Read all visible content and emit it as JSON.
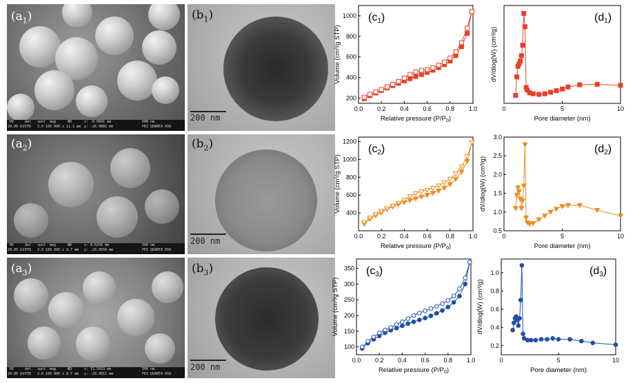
{
  "figure": {
    "labels": {
      "a1": {
        "main": "(a",
        "sub": "1",
        "close": ")"
      },
      "a2": {
        "main": "(a",
        "sub": "2",
        "close": ")"
      },
      "a3": {
        "main": "(a",
        "sub": "3",
        "close": ")"
      },
      "b1": {
        "main": "(b",
        "sub": "1",
        "close": ")"
      },
      "b2": {
        "main": "(b",
        "sub": "2",
        "close": ")"
      },
      "b3": {
        "main": "(b",
        "sub": "3",
        "close": ")"
      },
      "c1": {
        "main": "(c",
        "sub": "1",
        "close": ")"
      },
      "c2": {
        "main": "(c",
        "sub": "2",
        "close": ")"
      },
      "c3": {
        "main": "(c",
        "sub": "3",
        "close": ")"
      },
      "d1": {
        "main": "(d",
        "sub": "1",
        "close": ")"
      },
      "d2": {
        "main": "(d",
        "sub": "2",
        "close": ")"
      },
      "d3": {
        "main": "(d",
        "sub": "3",
        "close": ")"
      }
    },
    "sem_footer": {
      "row1": [
        "HV",
        "det",
        "spot",
        "mag",
        "WD",
        "500 nm"
      ],
      "row2_a1": [
        "20.00 kV",
        "ETD",
        "3.0",
        "160 000 x",
        "11.1 mm",
        "x: -0.0841 mm",
        "y: -26.9881 mm",
        "FEI QUANTA 650"
      ],
      "row2_a2": [
        "20.00 kV",
        "ETD",
        "3.0",
        "160 000 x",
        "8.7 mm",
        "x: 8.6256 mm",
        "y: -29.6656 mm",
        "FEI QUANTA 650"
      ],
      "row2_a3": [
        "20.00 kV",
        "ETD",
        "3.0",
        "160 000 x",
        "8.7 mm",
        "x: 13.5919 mm",
        "y: -28.0811 mm",
        "FEI QUANTA 650"
      ]
    },
    "tem_scale": "200 nm"
  },
  "chart_data": [
    {
      "id": "c1",
      "type": "line",
      "color": "#e8402a",
      "marker": "square",
      "xlabel": "Relative pressure (P/P",
      "xlabel_sub": "0",
      "xlabel_end": ")",
      "ylabel": "Volume (cm³/g STP)",
      "xlim": [
        0,
        1.0
      ],
      "ylim": [
        150,
        1100
      ],
      "xticks": [
        0.0,
        0.2,
        0.4,
        0.6,
        0.8,
        1.0
      ],
      "xtick_labels": [
        "0.0",
        "0.2",
        "0.4",
        "0.6",
        "0.8",
        "1.0"
      ],
      "yticks": [
        200,
        400,
        600,
        800,
        1000
      ],
      "ytick_labels": [
        "200",
        "400",
        "600",
        "800",
        "1000"
      ],
      "series": [
        {
          "role": "adsorption",
          "filled": true,
          "x": [
            0.05,
            0.1,
            0.15,
            0.2,
            0.25,
            0.3,
            0.35,
            0.4,
            0.45,
            0.5,
            0.55,
            0.6,
            0.65,
            0.7,
            0.75,
            0.8,
            0.85,
            0.9,
            0.95,
            0.99
          ],
          "y": [
            195,
            225,
            250,
            275,
            300,
            322,
            345,
            368,
            390,
            410,
            430,
            450,
            472,
            497,
            525,
            560,
            615,
            700,
            830,
            1040
          ]
        },
        {
          "role": "desorption",
          "filled": false,
          "x": [
            0.99,
            0.95,
            0.9,
            0.85,
            0.8,
            0.75,
            0.7,
            0.65,
            0.6,
            0.55,
            0.5,
            0.45,
            0.4,
            0.35,
            0.3,
            0.25,
            0.2,
            0.15,
            0.1,
            0.05
          ],
          "y": [
            1040,
            880,
            740,
            650,
            590,
            550,
            520,
            495,
            478,
            470,
            455,
            430,
            395,
            362,
            335,
            310,
            285,
            262,
            238,
            210
          ]
        }
      ]
    },
    {
      "id": "d1",
      "type": "line",
      "color": "#e8402a",
      "marker": "square",
      "xlabel": "Pore diameter (nm)",
      "ylabel": "dV/dlog(W) (cm³/g)",
      "xlim": [
        0,
        10
      ],
      "ylim": [
        0.45,
        2.3
      ],
      "xticks": [
        0,
        5,
        10
      ],
      "xtick_labels": [
        "0",
        "5",
        "10"
      ],
      "yticks": [],
      "ytick_labels": [],
      "series": [
        {
          "role": "distribution",
          "filled": true,
          "x": [
            1.0,
            1.1,
            1.2,
            1.3,
            1.4,
            1.5,
            1.6,
            1.7,
            1.8,
            1.9,
            2.0,
            2.2,
            2.5,
            3.0,
            3.5,
            4.0,
            4.5,
            5.0,
            5.5,
            6.5,
            8.0,
            10.0
          ],
          "y": [
            0.6,
            0.95,
            1.15,
            1.2,
            1.25,
            1.35,
            1.55,
            2.15,
            1.9,
            0.75,
            0.7,
            0.65,
            0.63,
            0.62,
            0.63,
            0.66,
            0.69,
            0.72,
            0.76,
            0.8,
            0.81,
            0.79
          ]
        }
      ]
    },
    {
      "id": "c2",
      "type": "line",
      "color": "#f08a20",
      "marker": "triangle-down",
      "xlabel": "Relative pressure (P/P",
      "xlabel_sub": "0",
      "xlabel_end": ")",
      "ylabel": "Volume (cm³/g STP)",
      "xlim": [
        0,
        1.0
      ],
      "ylim": [
        200,
        1250
      ],
      "xticks": [
        0.0,
        0.2,
        0.4,
        0.6,
        0.8,
        1.0
      ],
      "xtick_labels": [
        "0.0",
        "0.2",
        "0.4",
        "0.6",
        "0.8",
        "1.0"
      ],
      "yticks": [
        400,
        600,
        800,
        1000,
        1200
      ],
      "ytick_labels": [
        "400",
        "600",
        "800",
        "1000",
        "1200"
      ],
      "series": [
        {
          "role": "adsorption",
          "filled": true,
          "x": [
            0.05,
            0.1,
            0.15,
            0.2,
            0.25,
            0.3,
            0.35,
            0.4,
            0.45,
            0.5,
            0.55,
            0.6,
            0.65,
            0.7,
            0.75,
            0.8,
            0.85,
            0.9,
            0.95,
            0.99
          ],
          "y": [
            275,
            330,
            370,
            405,
            440,
            470,
            495,
            520,
            540,
            560,
            580,
            600,
            622,
            648,
            680,
            720,
            780,
            860,
            980,
            1190
          ]
        },
        {
          "role": "desorption",
          "filled": false,
          "x": [
            0.99,
            0.95,
            0.9,
            0.85,
            0.8,
            0.75,
            0.7,
            0.65,
            0.6,
            0.55,
            0.5,
            0.45,
            0.4,
            0.35,
            0.3,
            0.25,
            0.2,
            0.15,
            0.1,
            0.05
          ],
          "y": [
            1190,
            1030,
            920,
            840,
            780,
            740,
            705,
            678,
            655,
            640,
            620,
            585,
            545,
            510,
            478,
            450,
            420,
            385,
            345,
            295
          ]
        }
      ]
    },
    {
      "id": "d2",
      "type": "line",
      "color": "#f08a20",
      "marker": "triangle-down",
      "xlabel": "Pore diameter (nm)",
      "ylabel": "dV/dlog(W) (cm³/g)",
      "xlim": [
        0,
        10
      ],
      "ylim": [
        0.5,
        3.0
      ],
      "xticks": [
        0,
        5,
        10
      ],
      "xtick_labels": [
        "0",
        "5",
        "10"
      ],
      "yticks": [
        0.5,
        1.0,
        1.5,
        2.0,
        2.5,
        3.0
      ],
      "ytick_labels": [
        "0.5",
        "1.0",
        "1.5",
        "2.0",
        "2.5",
        "3.0"
      ],
      "series": [
        {
          "role": "distribution",
          "filled": true,
          "x": [
            1.0,
            1.1,
            1.2,
            1.3,
            1.4,
            1.5,
            1.6,
            1.7,
            1.8,
            1.9,
            2.0,
            2.2,
            2.5,
            3.0,
            3.5,
            4.0,
            4.5,
            5.0,
            5.5,
            6.5,
            8.0,
            10.0
          ],
          "y": [
            1.1,
            1.45,
            1.65,
            1.55,
            1.35,
            1.1,
            1.3,
            1.7,
            2.8,
            0.85,
            0.72,
            0.68,
            0.7,
            0.8,
            0.9,
            1.0,
            1.08,
            1.15,
            1.18,
            1.18,
            1.05,
            0.9
          ]
        }
      ]
    },
    {
      "id": "c3",
      "type": "line",
      "color": "#1f4fa8",
      "marker": "circle",
      "xlabel": "Relative pressure (P/P",
      "xlabel_sub": "0",
      "xlabel_end": ")",
      "ylabel": "Volume (cm³/g STP)",
      "xlim": [
        0,
        1.0
      ],
      "ylim": [
        75,
        380
      ],
      "xticks": [
        0.0,
        0.2,
        0.4,
        0.6,
        0.8,
        1.0
      ],
      "xtick_labels": [
        "0.0",
        "0.2",
        "0.4",
        "0.6",
        "0.8",
        "1.0"
      ],
      "yticks": [
        100,
        150,
        200,
        250,
        300,
        350
      ],
      "ytick_labels": [
        "100",
        "150",
        "200",
        "250",
        "300",
        "350"
      ],
      "series": [
        {
          "role": "adsorption",
          "filled": true,
          "x": [
            0.05,
            0.1,
            0.15,
            0.2,
            0.25,
            0.3,
            0.35,
            0.4,
            0.45,
            0.5,
            0.55,
            0.6,
            0.65,
            0.7,
            0.75,
            0.8,
            0.85,
            0.9,
            0.95,
            0.99
          ],
          "y": [
            95,
            112,
            124,
            135,
            145,
            153,
            160,
            167,
            174,
            180,
            186,
            192,
            199,
            207,
            216,
            227,
            242,
            262,
            300,
            370
          ]
        },
        {
          "role": "desorption",
          "filled": false,
          "x": [
            0.99,
            0.95,
            0.9,
            0.85,
            0.8,
            0.75,
            0.7,
            0.65,
            0.6,
            0.55,
            0.5,
            0.45,
            0.4,
            0.35,
            0.3,
            0.25,
            0.2,
            0.15,
            0.1,
            0.05
          ],
          "y": [
            370,
            320,
            285,
            262,
            248,
            238,
            229,
            222,
            215,
            208,
            200,
            190,
            180,
            171,
            162,
            154,
            145,
            132,
            118,
            100
          ]
        }
      ]
    },
    {
      "id": "d3",
      "type": "line",
      "color": "#1f4fa8",
      "marker": "circle",
      "xlabel": "Pore diameter (nm)",
      "ylabel": "dV/dlog(W) (cm³/g)",
      "xlim": [
        0,
        10
      ],
      "ylim": [
        0.1,
        1.15
      ],
      "xticks": [
        0,
        5,
        10
      ],
      "xtick_labels": [
        "0",
        "5",
        "10"
      ],
      "yticks": [
        0.2,
        0.4,
        0.6,
        0.8,
        1.0
      ],
      "ytick_labels": [
        "0.2",
        "0.4",
        "0.6",
        "0.8",
        "1.0"
      ],
      "series": [
        {
          "role": "distribution",
          "filled": true,
          "x": [
            1.0,
            1.1,
            1.2,
            1.3,
            1.4,
            1.5,
            1.6,
            1.7,
            1.8,
            1.9,
            2.0,
            2.3,
            2.6,
            3.0,
            3.5,
            4.0,
            4.5,
            5.0,
            6.0,
            7.0,
            8.0,
            10.0
          ],
          "y": [
            0.37,
            0.45,
            0.5,
            0.52,
            0.48,
            0.42,
            0.5,
            0.7,
            1.08,
            0.33,
            0.28,
            0.26,
            0.26,
            0.26,
            0.27,
            0.27,
            0.28,
            0.27,
            0.27,
            0.25,
            0.23,
            0.21
          ]
        }
      ]
    }
  ]
}
